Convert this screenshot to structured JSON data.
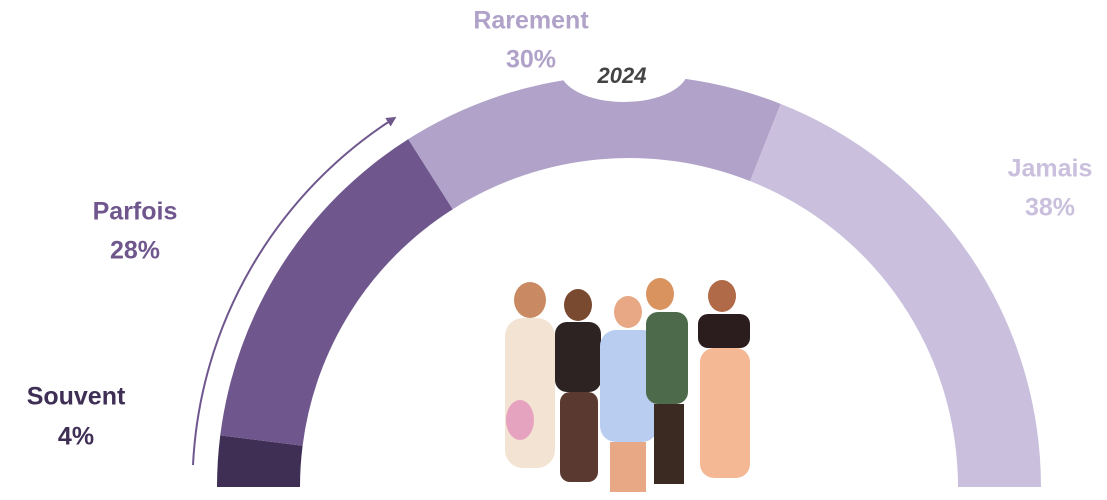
{
  "chart_data": {
    "type": "half-donut",
    "subtitle": "2024",
    "categories": [
      "Souvent",
      "Parfois",
      "Rarement",
      "Jamais"
    ],
    "values": [
      4,
      28,
      30,
      38
    ],
    "value_labels": [
      "4%",
      "28%",
      "30%",
      "38%"
    ],
    "colors": [
      "#3f2f55",
      "#6f578e",
      "#b0a2c8",
      "#cac0dd"
    ]
  }
}
